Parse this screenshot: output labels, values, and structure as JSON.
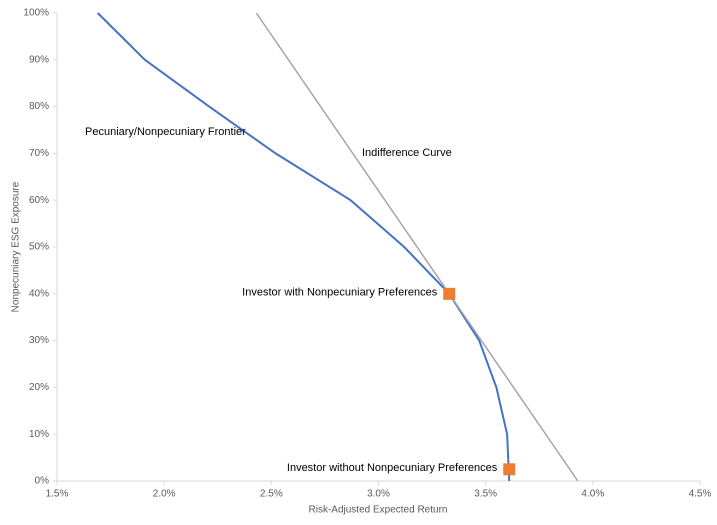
{
  "chart_data": {
    "type": "line",
    "x_label": "Risk-Adjusted Expected Return",
    "y_label": "Nonpecuniary ESG Exposure",
    "xlim": [
      1.5,
      4.5
    ],
    "ylim": [
      0,
      100
    ],
    "xticks": [
      {
        "value": 1.5,
        "label": "1.5%"
      },
      {
        "value": 2.0,
        "label": "2.0%"
      },
      {
        "value": 2.5,
        "label": "2.5%"
      },
      {
        "value": 3.0,
        "label": "3.0%"
      },
      {
        "value": 3.5,
        "label": "3.5%"
      },
      {
        "value": 4.0,
        "label": "4.0%"
      },
      {
        "value": 4.5,
        "label": "4.5%"
      }
    ],
    "yticks": [
      {
        "value": 0,
        "label": "0%"
      },
      {
        "value": 10,
        "label": "10%"
      },
      {
        "value": 20,
        "label": "20%"
      },
      {
        "value": 30,
        "label": "30%"
      },
      {
        "value": 40,
        "label": "40%"
      },
      {
        "value": 50,
        "label": "50%"
      },
      {
        "value": 60,
        "label": "60%"
      },
      {
        "value": 70,
        "label": "70%"
      },
      {
        "value": 80,
        "label": "80%"
      },
      {
        "value": 90,
        "label": "90%"
      },
      {
        "value": 100,
        "label": "100%"
      }
    ],
    "series": [
      {
        "name": "Pecuniary/Nonpecuniary Frontier",
        "color": "#4472c4",
        "x": [
          1.69,
          1.91,
          2.21,
          2.52,
          2.87,
          3.12,
          3.33,
          3.47,
          3.55,
          3.6,
          3.61
        ],
        "values": [
          100,
          90,
          80,
          70,
          60,
          50,
          40,
          30,
          20,
          10,
          0
        ]
      },
      {
        "name": "Indifference Curve",
        "color": "#a5a5a5",
        "x": [
          2.43,
          3.93
        ],
        "values": [
          100,
          0
        ]
      }
    ],
    "points": [
      {
        "label": "Investor with Nonpecuniary Preferences",
        "x": 3.33,
        "y": 40,
        "color": "#ed7d31"
      },
      {
        "label": "Investor without Nonpecuniary Preferences",
        "x": 3.61,
        "y": 2.5,
        "color": "#ed7d31"
      }
    ]
  }
}
